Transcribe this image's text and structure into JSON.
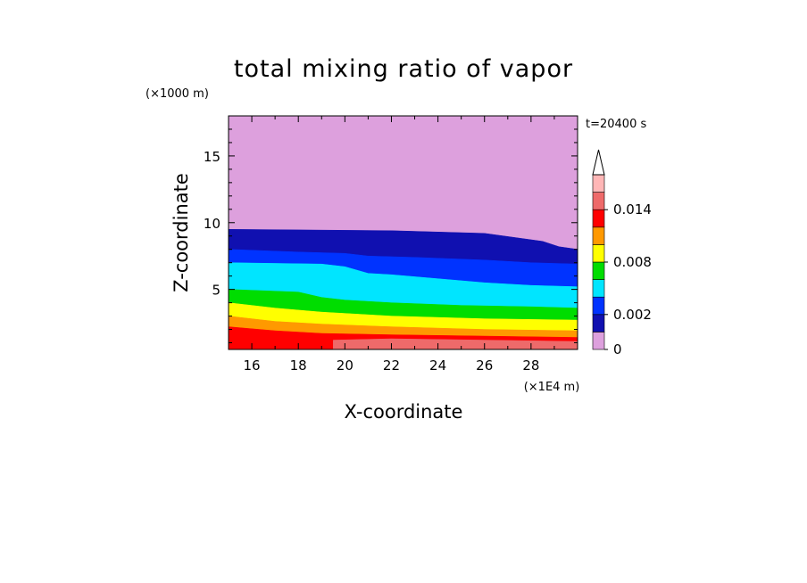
{
  "chart_data": {
    "type": "contour",
    "title": "total mixing ratio of vapor",
    "time_label": "t=20400 s",
    "xlabel": "X-coordinate",
    "ylabel": "Z-coordinate",
    "x_unit": "(×1E4 m)",
    "y_unit": "(×1000 m)",
    "xlim": [
      15,
      30
    ],
    "ylim": [
      0.5,
      18
    ],
    "x_ticks": [
      16,
      18,
      20,
      22,
      24,
      26,
      28
    ],
    "y_ticks": [
      5,
      10,
      15
    ],
    "colorbar": {
      "levels": [
        0,
        0.001,
        0.002,
        0.004,
        0.006,
        0.008,
        0.01,
        0.012,
        0.014,
        0.016
      ],
      "labels": [
        "0",
        "0.002",
        "0.008",
        "0.014"
      ],
      "label_values": [
        0,
        0.002,
        0.008,
        0.014
      ],
      "colors": [
        "#dda0dd",
        "#1010b0",
        "#0033ff",
        "#00e5ff",
        "#00dd00",
        "#ffff00",
        "#ff9900",
        "#ff0000",
        "#ee6a6a",
        "#ffb6b6"
      ],
      "extend": "max"
    },
    "bands": [
      {
        "level": 0.0,
        "color": "#dda0dd",
        "top": [
          [
            15,
            18
          ],
          [
            30,
            18
          ]
        ],
        "bottom": [
          [
            15,
            9.5
          ],
          [
            22,
            9.4
          ],
          [
            26,
            9.2
          ],
          [
            28.5,
            8.6
          ],
          [
            29.2,
            8.2
          ],
          [
            30,
            8.0
          ]
        ]
      },
      {
        "level": 0.001,
        "color": "#1010b0",
        "top": [
          [
            15,
            9.5
          ],
          [
            22,
            9.4
          ],
          [
            26,
            9.2
          ],
          [
            28.5,
            8.6
          ],
          [
            29.2,
            8.2
          ],
          [
            30,
            8.0
          ]
        ],
        "bottom": [
          [
            15,
            7.0
          ],
          [
            19,
            6.9
          ],
          [
            20,
            6.7
          ],
          [
            21,
            6.2
          ],
          [
            22,
            6.1
          ],
          [
            24,
            5.8
          ],
          [
            26,
            5.5
          ],
          [
            28,
            5.3
          ],
          [
            30,
            5.2
          ]
        ]
      },
      {
        "level": 0.002,
        "color": "#0033ff",
        "top": [
          [
            15,
            8.0
          ],
          [
            18,
            7.8
          ],
          [
            20,
            7.7
          ],
          [
            21,
            7.5
          ],
          [
            23,
            7.4
          ],
          [
            26,
            7.2
          ],
          [
            28,
            7.0
          ],
          [
            30,
            6.9
          ]
        ],
        "bottom": [
          [
            15,
            7.0
          ],
          [
            19,
            6.9
          ],
          [
            20,
            6.7
          ],
          [
            21,
            6.2
          ],
          [
            22,
            6.1
          ],
          [
            24,
            5.8
          ],
          [
            26,
            5.5
          ],
          [
            28,
            5.3
          ],
          [
            30,
            5.2
          ]
        ]
      },
      {
        "level": 0.004,
        "color": "#00e5ff",
        "top": [
          [
            15,
            7.0
          ],
          [
            19,
            6.9
          ],
          [
            20,
            6.7
          ],
          [
            21,
            6.2
          ],
          [
            22,
            6.1
          ],
          [
            24,
            5.8
          ],
          [
            26,
            5.5
          ],
          [
            28,
            5.3
          ],
          [
            30,
            5.2
          ]
        ],
        "bottom": [
          [
            15,
            5.0
          ],
          [
            18,
            4.8
          ],
          [
            19,
            4.4
          ],
          [
            20,
            4.2
          ],
          [
            22,
            4.0
          ],
          [
            25,
            3.8
          ],
          [
            28,
            3.7
          ],
          [
            30,
            3.6
          ]
        ]
      },
      {
        "level": 0.006,
        "color": "#00dd00",
        "top": [
          [
            15,
            5.0
          ],
          [
            18,
            4.8
          ],
          [
            19,
            4.4
          ],
          [
            20,
            4.2
          ],
          [
            22,
            4.0
          ],
          [
            25,
            3.8
          ],
          [
            28,
            3.7
          ],
          [
            30,
            3.6
          ]
        ],
        "bottom": [
          [
            15,
            4.0
          ],
          [
            17,
            3.6
          ],
          [
            19,
            3.3
          ],
          [
            22,
            3.0
          ],
          [
            26,
            2.8
          ],
          [
            30,
            2.7
          ]
        ]
      },
      {
        "level": 0.008,
        "color": "#ffff00",
        "top": [
          [
            15,
            4.0
          ],
          [
            17,
            3.6
          ],
          [
            19,
            3.3
          ],
          [
            22,
            3.0
          ],
          [
            26,
            2.8
          ],
          [
            30,
            2.7
          ]
        ],
        "bottom": [
          [
            15,
            3.0
          ],
          [
            17,
            2.6
          ],
          [
            19,
            2.4
          ],
          [
            22,
            2.2
          ],
          [
            26,
            2.0
          ],
          [
            30,
            1.9
          ]
        ]
      },
      {
        "level": 0.01,
        "color": "#ff9900",
        "top": [
          [
            15,
            3.0
          ],
          [
            17,
            2.6
          ],
          [
            19,
            2.4
          ],
          [
            22,
            2.2
          ],
          [
            26,
            2.0
          ],
          [
            30,
            1.9
          ]
        ],
        "bottom": [
          [
            15,
            2.2
          ],
          [
            17,
            1.9
          ],
          [
            19,
            1.7
          ],
          [
            22,
            1.6
          ],
          [
            26,
            1.5
          ],
          [
            30,
            1.4
          ]
        ]
      },
      {
        "level": 0.012,
        "color": "#ff0000",
        "top": [
          [
            15,
            2.2
          ],
          [
            17,
            1.9
          ],
          [
            19,
            1.7
          ],
          [
            22,
            1.6
          ],
          [
            26,
            1.5
          ],
          [
            30,
            1.4
          ]
        ],
        "bottom": [
          [
            15,
            0.5
          ],
          [
            30,
            0.5
          ]
        ]
      },
      {
        "level": 0.014,
        "color": "#ee6a6a",
        "top": [
          [
            19.5,
            1.2
          ],
          [
            22,
            1.3
          ],
          [
            26,
            1.2
          ],
          [
            30,
            1.1
          ]
        ],
        "bottom": [
          [
            19.5,
            0.5
          ],
          [
            30,
            0.5
          ]
        ]
      }
    ]
  }
}
